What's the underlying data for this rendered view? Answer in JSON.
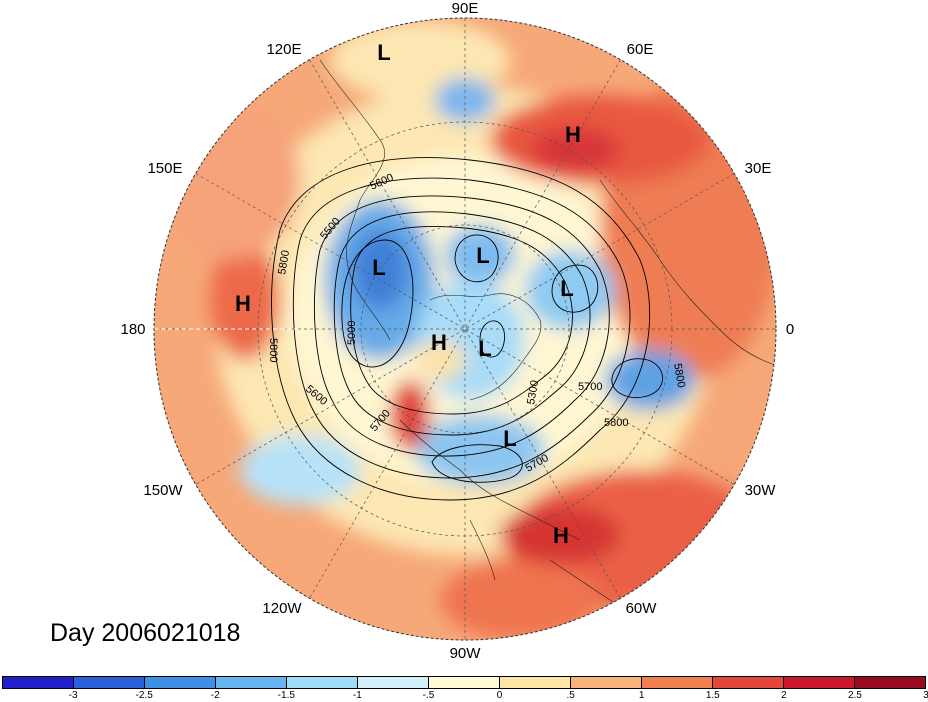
{
  "title": "Day 2006021018",
  "longitude_labels": {
    "top": "90E",
    "upper_left": "120E",
    "upper_right": "60E",
    "mid_upper_left": "150E",
    "mid_upper_right": "30E",
    "left": "180",
    "right": "0",
    "mid_lower_left": "150W",
    "mid_lower_right": "30W",
    "lower_left": "120W",
    "lower_right": "60W",
    "bottom": "90W"
  },
  "pressure_centers": {
    "items": [
      "L",
      "H",
      "L",
      "L",
      "L",
      "H",
      "L",
      "L",
      "H",
      "H"
    ]
  },
  "contour_labels": [
    "5600",
    "5500",
    "5800",
    "5800",
    "5000",
    "5600",
    "5700",
    "5300",
    "5700",
    "5800",
    "5800",
    "5700"
  ],
  "colorbar": {
    "colors": [
      "#1f1fcc",
      "#2a5fd8",
      "#3f8fe6",
      "#66b4f0",
      "#9fdcf8",
      "#d2f0fb",
      "#fffbd5",
      "#fde5a5",
      "#f7b37a",
      "#f08050",
      "#e4463a",
      "#c8182a",
      "#9a0a1e"
    ],
    "ticks": [
      "-3",
      "-2.5",
      "-2",
      "-1.5",
      "-1",
      "-.5",
      "0",
      ".5",
      "1",
      "1.5",
      "2",
      "2.5",
      "3"
    ]
  }
}
